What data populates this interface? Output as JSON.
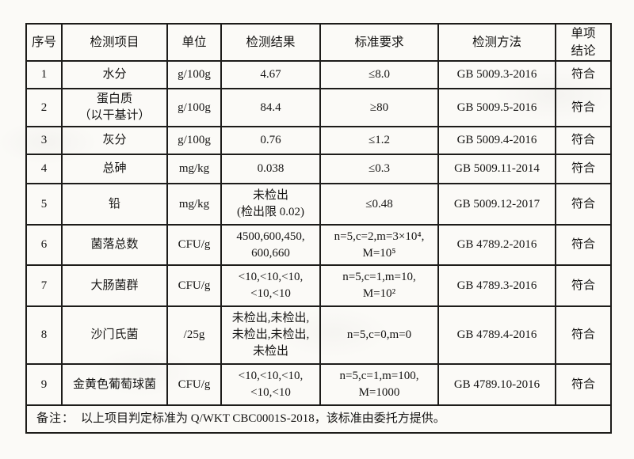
{
  "colors": {
    "paper": "#FBFAF7",
    "ink": "#151413",
    "border": "#1D1C1A"
  },
  "table": {
    "headers": {
      "no": "序号",
      "item": "检测项目",
      "unit": "单位",
      "result": "检测结果",
      "requirement": "标准要求",
      "method": "检测方法",
      "conclusion": "单项\n结论"
    },
    "rows": [
      {
        "no": "1",
        "item": "水分",
        "unit": "g/100g",
        "result": "4.67",
        "requirement": "≤8.0",
        "method": "GB 5009.3-2016",
        "conclusion": "符合"
      },
      {
        "no": "2",
        "item": "蛋白质\n（以干基计）",
        "unit": "g/100g",
        "result": "84.4",
        "requirement": "≥80",
        "method": "GB 5009.5-2016",
        "conclusion": "符合"
      },
      {
        "no": "3",
        "item": "灰分",
        "unit": "g/100g",
        "result": "0.76",
        "requirement": "≤1.2",
        "method": "GB 5009.4-2016",
        "conclusion": "符合"
      },
      {
        "no": "4",
        "item": "总砷",
        "unit": "mg/kg",
        "result": "0.038",
        "requirement": "≤0.3",
        "method": "GB 5009.11-2014",
        "conclusion": "符合"
      },
      {
        "no": "5",
        "item": "铅",
        "unit": "mg/kg",
        "result": "未检出\n(检出限 0.02)",
        "requirement": "≤0.48",
        "method": "GB 5009.12-2017",
        "conclusion": "符合"
      },
      {
        "no": "6",
        "item": "菌落总数",
        "unit": "CFU/g",
        "result": "4500,600,450,\n600,660",
        "requirement": "n=5,c=2,m=3×10⁴,\nM=10⁵",
        "method": "GB 4789.2-2016",
        "conclusion": "符合"
      },
      {
        "no": "7",
        "item": "大肠菌群",
        "unit": "CFU/g",
        "result": "<10,<10,<10,\n<10,<10",
        "requirement": "n=5,c=1,m=10,\nM=10²",
        "method": "GB 4789.3-2016",
        "conclusion": "符合"
      },
      {
        "no": "8",
        "item": "沙门氏菌",
        "unit": "/25g",
        "result": "未检出,未检出,\n未检出,未检出,\n未检出",
        "requirement": "n=5,c=0,m=0",
        "method": "GB 4789.4-2016",
        "conclusion": "符合"
      },
      {
        "no": "9",
        "item": "金黄色葡萄球菌",
        "unit": "CFU/g",
        "result": "<10,<10,<10,\n<10,<10",
        "requirement": "n=5,c=1,m=100,\nM=1000",
        "method": "GB 4789.10-2016",
        "conclusion": "符合"
      }
    ],
    "note_label": "备注：",
    "note_text": "以上项目判定标准为 Q/WKT CBC0001S-2018，该标准由委托方提供。"
  }
}
